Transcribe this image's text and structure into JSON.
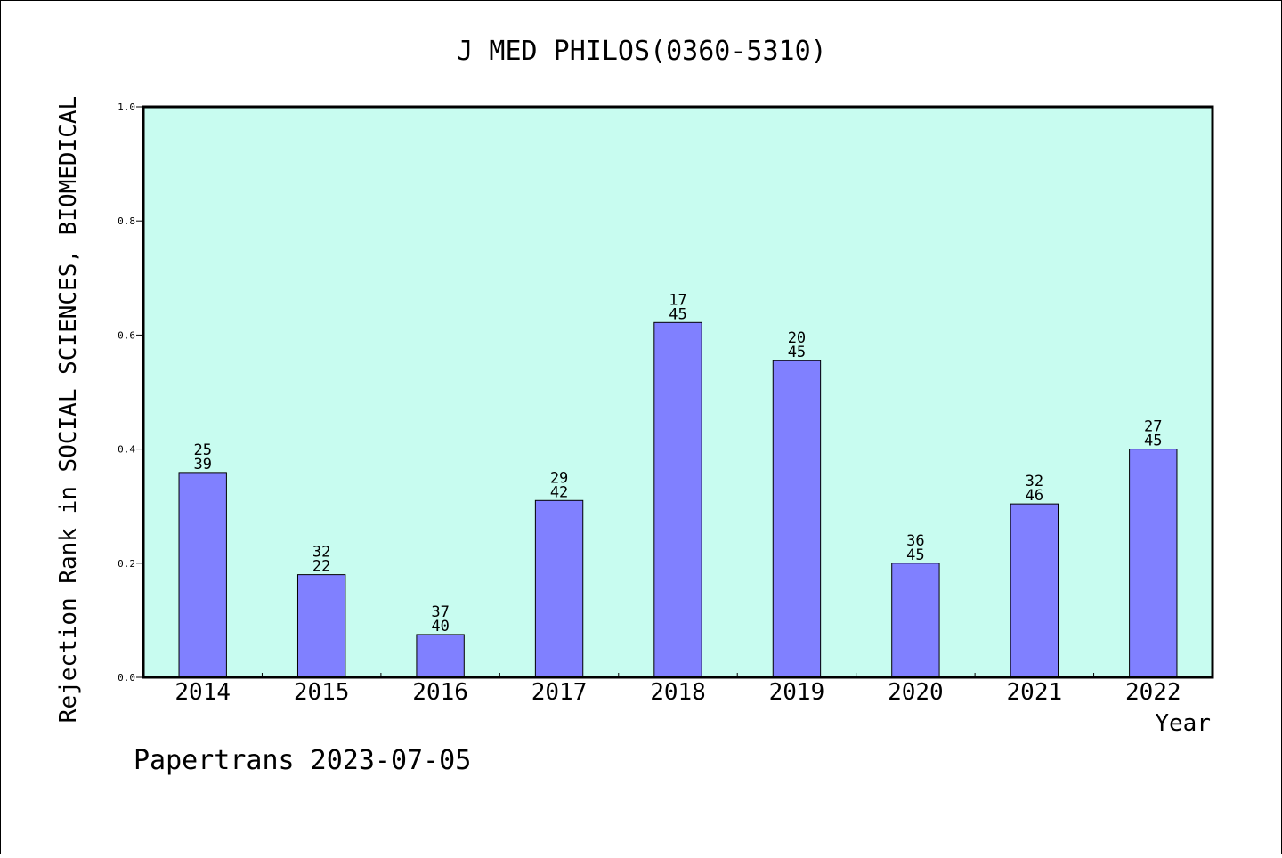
{
  "chart_data": {
    "type": "bar",
    "title": "J MED PHILOS(0360-5310)",
    "xlabel": "Year",
    "ylabel": "Rejection Rank in SOCIAL SCIENCES, BIOMEDICAL",
    "ylim": [
      0,
      1.0
    ],
    "yticks": [
      "0.0",
      "0.2",
      "0.4",
      "0.6",
      "0.8",
      "1.0"
    ],
    "categories": [
      "2014",
      "2015",
      "2016",
      "2017",
      "2018",
      "2019",
      "2020",
      "2021",
      "2022"
    ],
    "values": [
      0.359,
      0.18,
      0.075,
      0.31,
      0.622,
      0.555,
      0.2,
      0.304,
      0.4
    ],
    "labels_top": [
      "25",
      "32",
      "37",
      "29",
      "17",
      "20",
      "36",
      "32",
      "27"
    ],
    "labels_bottom": [
      "39",
      "22",
      "40",
      "42",
      "45",
      "45",
      "45",
      "46",
      "45"
    ],
    "grid": false,
    "colors": {
      "plot_background": "#c8fcf0",
      "bar_fill": "#8080ff",
      "bar_stroke": "#000000"
    }
  },
  "footer": {
    "text": "Papertrans 2023-07-05"
  }
}
